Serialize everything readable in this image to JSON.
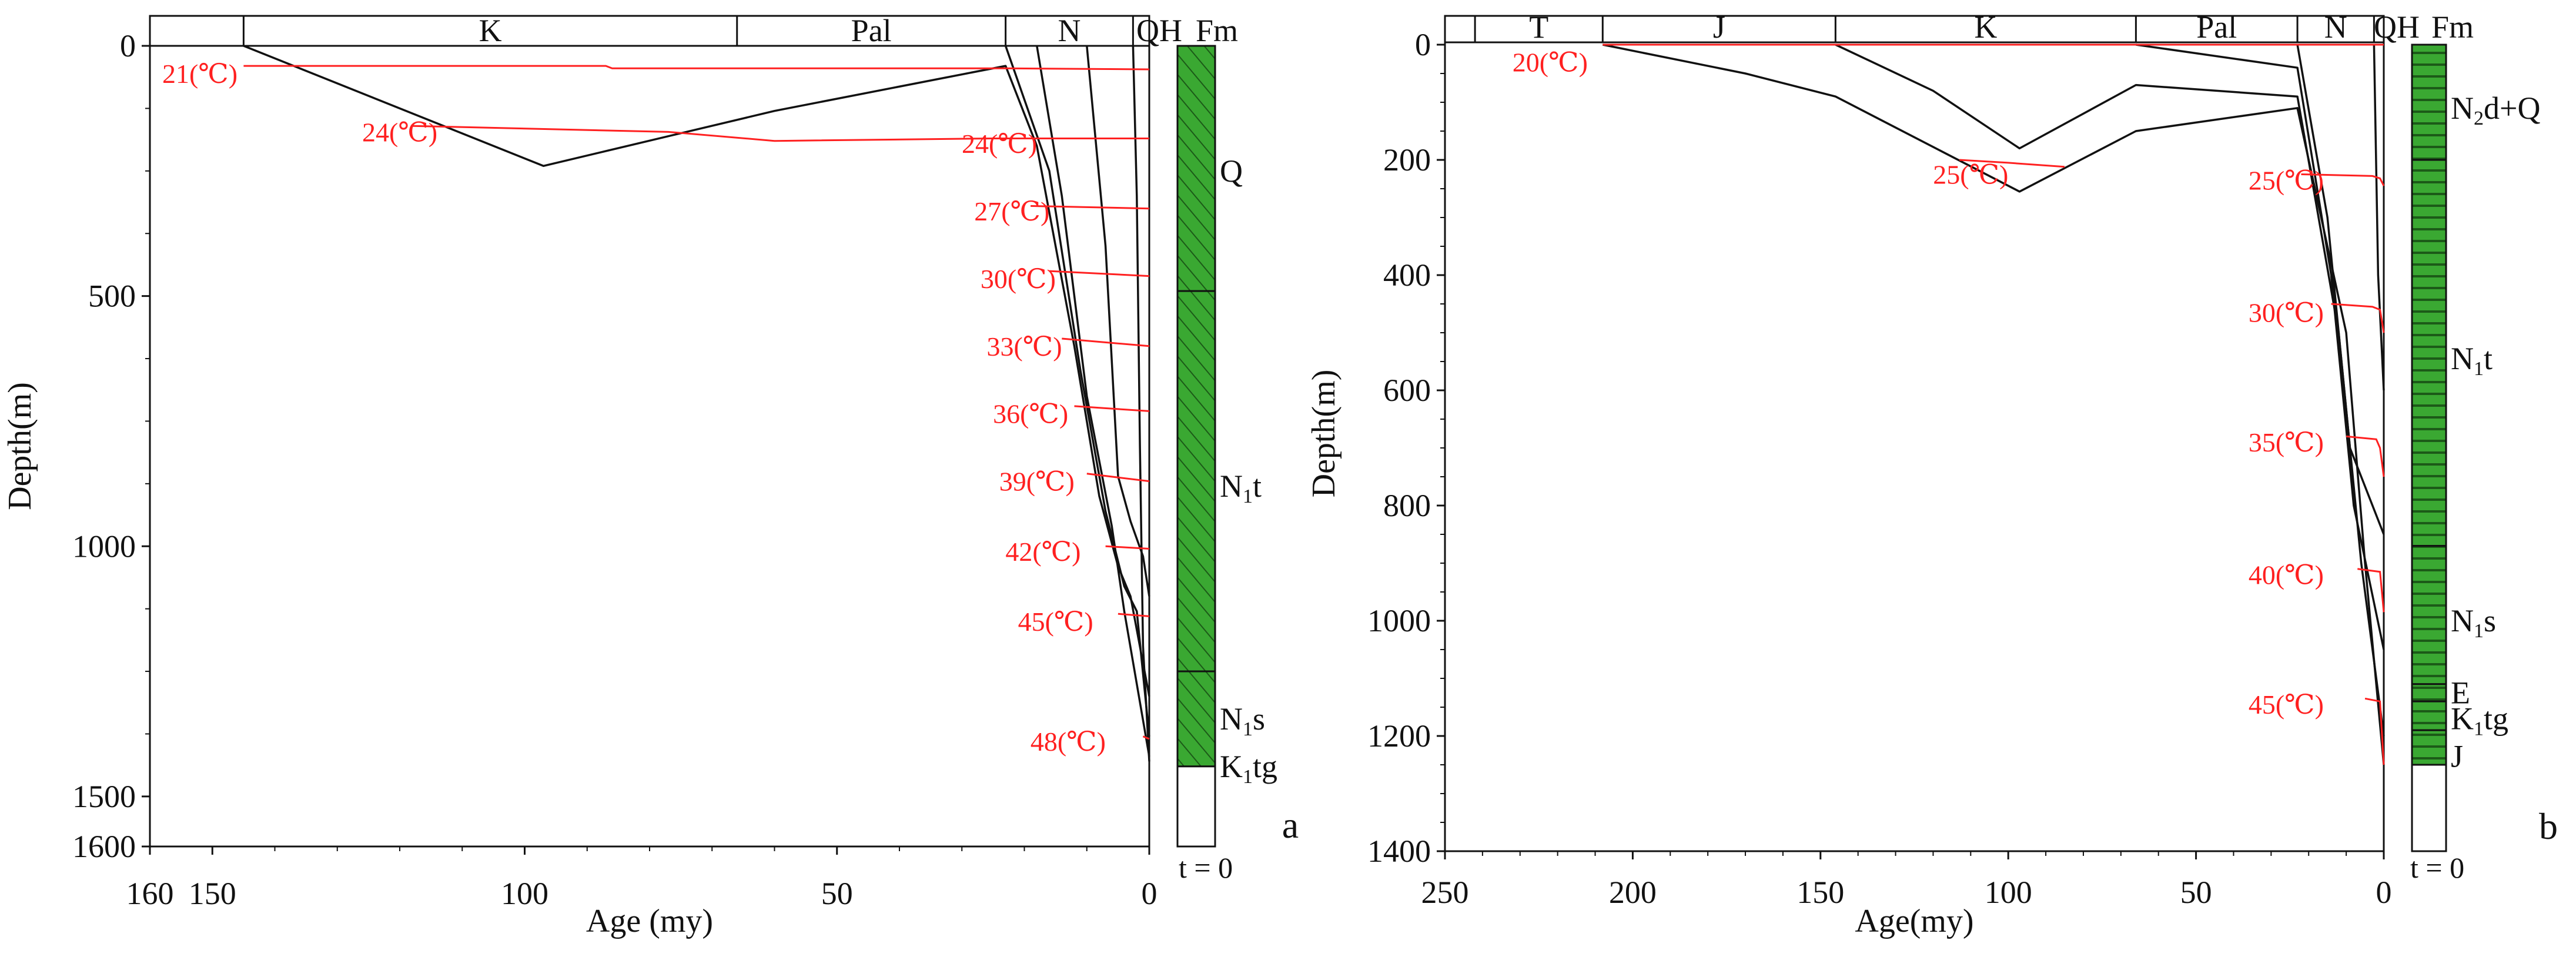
{
  "chart_data": [
    {
      "panel": "a",
      "type": "line",
      "xlabel": "Age (my)",
      "ylabel": "Depth(m)",
      "xlim": [
        160,
        0
      ],
      "ylim": [
        0,
        1600
      ],
      "x_ticks": [
        160,
        150,
        100,
        50,
        0
      ],
      "y_ticks": [
        0,
        500,
        1000,
        1500,
        1600
      ],
      "periods": [
        {
          "name": "",
          "start": 160,
          "end": 145
        },
        {
          "name": "K",
          "start": 145,
          "end": 66
        },
        {
          "name": "Pal",
          "start": 66,
          "end": 23
        },
        {
          "name": "N",
          "start": 23,
          "end": 2.6
        },
        {
          "name": "QH",
          "start": 2.6,
          "end": 0
        }
      ],
      "fm_header": "Fm",
      "formations": [
        {
          "name": "Q",
          "sub": "",
          "suffix": "",
          "top": 0,
          "base": 490,
          "label_depth": 250,
          "fill": "#3aa832",
          "pattern": "diag"
        },
        {
          "name": "N",
          "sub": "1",
          "suffix": "t",
          "top": 490,
          "base": 1250,
          "label_depth": 880,
          "fill": "#3aa832",
          "pattern": "diag"
        },
        {
          "name": "N",
          "sub": "1",
          "suffix": "s",
          "top": 1250,
          "base": 1440,
          "label_depth": 1345,
          "fill": "#3aa832",
          "pattern": "diag"
        },
        {
          "name": "K",
          "sub": "1",
          "suffix": "tg",
          "top": 1440,
          "base": 1600,
          "label_depth": 1440,
          "fill": "#ffffff",
          "pattern": "none"
        }
      ],
      "column_base": 1600,
      "burial_curves": [
        {
          "name": "horizon-1",
          "points": [
            [
              145,
              0
            ],
            [
              97,
              240
            ],
            [
              60,
              130
            ],
            [
              23,
              40
            ],
            [
              18,
              200
            ],
            [
              12,
              600
            ],
            [
              8,
              900
            ],
            [
              5,
              1040
            ],
            [
              3,
              1100
            ],
            [
              0,
              1300
            ]
          ]
        },
        {
          "name": "horizon-2",
          "points": [
            [
              23,
              0
            ],
            [
              16,
              250
            ],
            [
              11,
              650
            ],
            [
              7,
              930
            ],
            [
              4,
              1080
            ],
            [
              2,
              1130
            ],
            [
              0,
              1380
            ]
          ]
        },
        {
          "name": "horizon-3",
          "points": [
            [
              18,
              0
            ],
            [
              14,
              300
            ],
            [
              10,
              700
            ],
            [
              6,
              960
            ],
            [
              4,
              1130
            ],
            [
              0,
              1420
            ]
          ]
        },
        {
          "name": "horizon-4",
          "points": [
            [
              10,
              0
            ],
            [
              7,
              400
            ],
            [
              5,
              860
            ],
            [
              3,
              950
            ],
            [
              1,
              1020
            ],
            [
              0,
              1100
            ]
          ]
        },
        {
          "name": "horizon-5",
          "points": [
            [
              2.6,
              0
            ],
            [
              2,
              300
            ],
            [
              1.5,
              800
            ],
            [
              1,
              1200
            ],
            [
              0,
              1430
            ]
          ]
        }
      ],
      "isotherms": [
        {
          "label": "21(℃)",
          "label_age": 152,
          "label_depth": 55,
          "points": [
            [
              145,
              40
            ],
            [
              87,
              40
            ],
            [
              86,
              45
            ],
            [
              23,
              45
            ],
            [
              0,
              47
            ]
          ]
        },
        {
          "label": "24(℃)",
          "label_age": 120,
          "label_depth": 172,
          "points": [
            [
              118,
              160
            ],
            [
              77,
              172
            ],
            [
              60,
              190
            ],
            [
              25,
              185
            ],
            [
              0,
              185
            ]
          ]
        },
        {
          "label": "24(℃)",
          "label_age": 24,
          "label_depth": 195,
          "points": [
            [
              22,
              185
            ],
            [
              0,
              185
            ]
          ]
        },
        {
          "label": "27(℃)",
          "label_age": 22,
          "label_depth": 330,
          "points": [
            [
              19,
              320
            ],
            [
              0,
              325
            ]
          ]
        },
        {
          "label": "30(℃)",
          "label_age": 21,
          "label_depth": 465,
          "points": [
            [
              16,
              450
            ],
            [
              0,
              460
            ]
          ]
        },
        {
          "label": "33(℃)",
          "label_age": 20,
          "label_depth": 600,
          "points": [
            [
              14,
              585
            ],
            [
              0,
              600
            ]
          ]
        },
        {
          "label": "36(℃)",
          "label_age": 19,
          "label_depth": 735,
          "points": [
            [
              12,
              720
            ],
            [
              0,
              730
            ]
          ]
        },
        {
          "label": "39(℃)",
          "label_age": 18,
          "label_depth": 870,
          "points": [
            [
              10,
              855
            ],
            [
              0,
              870
            ]
          ]
        },
        {
          "label": "42(℃)",
          "label_age": 17,
          "label_depth": 1010,
          "points": [
            [
              7,
              1000
            ],
            [
              0,
              1005
            ]
          ]
        },
        {
          "label": "45(℃)",
          "label_age": 15,
          "label_depth": 1150,
          "points": [
            [
              5,
              1135
            ],
            [
              0,
              1140
            ]
          ]
        },
        {
          "label": "48(℃)",
          "label_age": 13,
          "label_depth": 1390,
          "points": [
            [
              1,
              1380
            ],
            [
              0,
              1385
            ]
          ]
        }
      ],
      "column_note": "t = 0",
      "panel_label": "a"
    },
    {
      "panel": "b",
      "type": "line",
      "xlabel": "Age(my)",
      "ylabel": "Depth(m)",
      "xlim": [
        250,
        0
      ],
      "ylim": [
        -50,
        1400
      ],
      "x_ticks": [
        250,
        200,
        150,
        100,
        50,
        0
      ],
      "y_ticks": [
        0,
        200,
        400,
        600,
        800,
        1000,
        1200,
        1400
      ],
      "periods": [
        {
          "name": "",
          "start": 250,
          "end": 242
        },
        {
          "name": "T",
          "start": 242,
          "end": 208
        },
        {
          "name": "J",
          "start": 208,
          "end": 146
        },
        {
          "name": "K",
          "start": 146,
          "end": 66
        },
        {
          "name": "Pal",
          "start": 66,
          "end": 23
        },
        {
          "name": "N",
          "start": 23,
          "end": 2.6
        },
        {
          "name": "QH",
          "start": 2.6,
          "end": 0
        }
      ],
      "fm_header": "Fm",
      "formations": [
        {
          "name": "N",
          "sub": "2",
          "suffix": "d+Q",
          "top": 0,
          "base": 200,
          "label_depth": 110,
          "fill": "#3aa832",
          "pattern": "horiz"
        },
        {
          "name": "N",
          "sub": "1",
          "suffix": "t",
          "top": 200,
          "base": 870,
          "label_depth": 545,
          "fill": "#3aa832",
          "pattern": "horiz"
        },
        {
          "name": "N",
          "sub": "1",
          "suffix": "s",
          "top": 870,
          "base": 1110,
          "label_depth": 1000,
          "fill": "#3aa832",
          "pattern": "horiz"
        },
        {
          "name": "E",
          "sub": "",
          "suffix": "",
          "top": 1110,
          "base": 1140,
          "label_depth": 1125,
          "fill": "#3aa832",
          "pattern": "horiz"
        },
        {
          "name": "K",
          "sub": "1",
          "suffix": "tg",
          "top": 1140,
          "base": 1190,
          "label_depth": 1170,
          "fill": "#3aa832",
          "pattern": "horiz"
        },
        {
          "name": "J",
          "sub": "",
          "suffix": "",
          "top": 1190,
          "base": 1250,
          "label_depth": 1235,
          "fill": "#3aa832",
          "pattern": "horiz"
        }
      ],
      "column_base": 1400,
      "burial_curves": [
        {
          "name": "horizon-1",
          "points": [
            [
              208,
              0
            ],
            [
              170,
              50
            ],
            [
              146,
              90
            ],
            [
              97,
              255
            ],
            [
              66,
              150
            ],
            [
              23,
              110
            ],
            [
              10,
              500
            ],
            [
              5,
              900
            ],
            [
              0,
              1250
            ]
          ]
        },
        {
          "name": "horizon-2",
          "points": [
            [
              146,
              0
            ],
            [
              120,
              80
            ],
            [
              97,
              180
            ],
            [
              66,
              70
            ],
            [
              23,
              90
            ],
            [
              12,
              500
            ],
            [
              6,
              900
            ],
            [
              0,
              1200
            ]
          ]
        },
        {
          "name": "horizon-3",
          "points": [
            [
              66,
              0
            ],
            [
              23,
              40
            ],
            [
              14,
              400
            ],
            [
              8,
              800
            ],
            [
              0,
              1050
            ]
          ]
        },
        {
          "name": "horizon-4",
          "points": [
            [
              23,
              0
            ],
            [
              15,
              300
            ],
            [
              9,
              700
            ],
            [
              0,
              850
            ]
          ]
        },
        {
          "name": "horizon-5",
          "points": [
            [
              2.6,
              0
            ],
            [
              1.5,
              400
            ],
            [
              0,
              600
            ]
          ]
        }
      ],
      "isotherms": [
        {
          "label": "20(℃)",
          "label_age": 222,
          "label_depth": 30,
          "points": [
            [
              208,
              0
            ],
            [
              0,
              0
            ]
          ]
        },
        {
          "label": "25(℃)",
          "label_age": 110,
          "label_depth": 225,
          "points": [
            [
              113,
              200
            ],
            [
              100,
              205
            ],
            [
              85,
              212
            ]
          ]
        },
        {
          "label": "25(℃)",
          "label_age": 26,
          "label_depth": 235,
          "points": [
            [
              22,
              225
            ],
            [
              3,
              228
            ],
            [
              1,
              232
            ],
            [
              0,
              245
            ]
          ]
        },
        {
          "label": "30(℃)",
          "label_age": 26,
          "label_depth": 465,
          "points": [
            [
              14,
              450
            ],
            [
              3,
              455
            ],
            [
              1,
              460
            ],
            [
              0,
              500
            ]
          ]
        },
        {
          "label": "35(℃)",
          "label_age": 26,
          "label_depth": 690,
          "points": [
            [
              10,
              680
            ],
            [
              2,
              685
            ],
            [
              1,
              700
            ],
            [
              0,
              750
            ]
          ]
        },
        {
          "label": "40(℃)",
          "label_age": 26,
          "label_depth": 920,
          "points": [
            [
              7,
              910
            ],
            [
              1,
              915
            ],
            [
              0,
              985
            ]
          ]
        },
        {
          "label": "45(℃)",
          "label_age": 26,
          "label_depth": 1145,
          "points": [
            [
              5,
              1135
            ],
            [
              1,
              1140
            ],
            [
              0,
              1250
            ]
          ]
        }
      ],
      "column_note": "t = 0",
      "panel_label": "b"
    }
  ],
  "colors": {
    "axis": "#111111",
    "burial_curve": "#111111",
    "isotherm": "#ff2020",
    "formation_fill": "#3aa832",
    "hatch": "#1c5a18"
  }
}
